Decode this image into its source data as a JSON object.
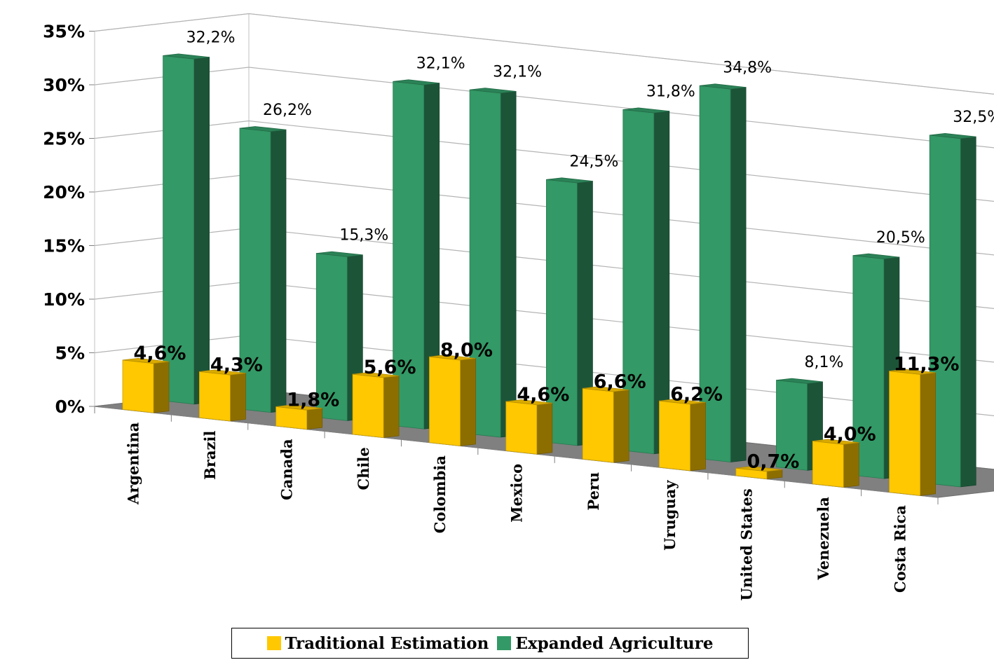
{
  "chart_data": {
    "type": "bar",
    "categories": [
      "Argentina",
      "Brazil",
      "Canada",
      "Chile",
      "Colombia",
      "Mexico",
      "Peru",
      "Uruguay",
      "United States",
      "Venezuela",
      "Costa Rica"
    ],
    "series": [
      {
        "name": "Traditional Estimation",
        "values": [
          4.6,
          4.3,
          1.8,
          5.6,
          8.0,
          4.6,
          6.6,
          6.2,
          0.7,
          4.0,
          11.3
        ],
        "labels": [
          "4,6%",
          "4,3%",
          "1,8%",
          "5,6%",
          "8,0%",
          "4,6%",
          "6,6%",
          "6,2%",
          "0,7%",
          "4,0%",
          "11,3%"
        ],
        "color": "#FFC800"
      },
      {
        "name": "Expanded Agriculture",
        "values": [
          32.2,
          26.2,
          15.3,
          32.1,
          32.1,
          24.5,
          31.8,
          34.8,
          8.1,
          20.5,
          32.5
        ],
        "labels": [
          "32,2%",
          "26,2%",
          "15,3%",
          "32,1%",
          "32,1%",
          "24,5%",
          "31,8%",
          "34,8%",
          "8,1%",
          "20,5%",
          "32,5%"
        ],
        "color": "#339966"
      }
    ],
    "y_ticks": [
      "0%",
      "5%",
      "10%",
      "15%",
      "20%",
      "25%",
      "30%",
      "35%"
    ],
    "ylim": [
      0,
      35
    ],
    "grid": true,
    "legend_position": "bottom",
    "style": "3d-clustered-bar"
  },
  "legend": {
    "items": [
      {
        "label": "Traditional Estimation",
        "color": "#FFC800"
      },
      {
        "label": "Expanded Agriculture",
        "color": "#339966"
      }
    ]
  }
}
